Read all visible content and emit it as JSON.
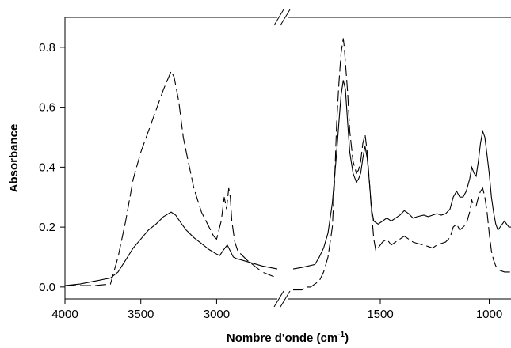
{
  "chart_data": {
    "type": "line",
    "title": "",
    "xlabel": "Nombre d'onde (cm",
    "xlabel_sup": "-1",
    "xlabel_suffix": ")",
    "ylabel": "Absorbance",
    "x_reversed": true,
    "axis_break": true,
    "x_segments": [
      {
        "xlim": [
          4000,
          2600
        ],
        "ticks": [
          4000,
          3500,
          3000
        ],
        "tick_labels": [
          "4000",
          "3500",
          "3000"
        ]
      },
      {
        "xlim": [
          1900,
          900
        ],
        "ticks": [
          1500,
          1000
        ],
        "tick_labels": [
          "1500",
          "1000"
        ]
      }
    ],
    "ylim": [
      -0.04,
      0.9
    ],
    "y_ticks": [
      0.0,
      0.2,
      0.4,
      0.6,
      0.8
    ],
    "y_tick_labels": [
      "0.0",
      "0.2",
      "0.4",
      "0.6",
      "0.8"
    ],
    "grid": false,
    "legend": "none",
    "series": [
      {
        "style": "solid",
        "points": [
          [
            4000,
            0.005
          ],
          [
            3900,
            0.01
          ],
          [
            3800,
            0.02
          ],
          [
            3700,
            0.03
          ],
          [
            3650,
            0.05
          ],
          [
            3600,
            0.09
          ],
          [
            3550,
            0.13
          ],
          [
            3500,
            0.16
          ],
          [
            3450,
            0.19
          ],
          [
            3400,
            0.21
          ],
          [
            3350,
            0.235
          ],
          [
            3300,
            0.25
          ],
          [
            3270,
            0.24
          ],
          [
            3230,
            0.21
          ],
          [
            3200,
            0.19
          ],
          [
            3150,
            0.165
          ],
          [
            3100,
            0.145
          ],
          [
            3050,
            0.125
          ],
          [
            3000,
            0.11
          ],
          [
            2980,
            0.105
          ],
          [
            2960,
            0.12
          ],
          [
            2930,
            0.14
          ],
          [
            2910,
            0.12
          ],
          [
            2890,
            0.1
          ],
          [
            2870,
            0.095
          ],
          [
            2800,
            0.085
          ],
          [
            2700,
            0.07
          ],
          [
            2600,
            0.06
          ],
          null,
          [
            1900,
            0.06
          ],
          [
            1860,
            0.065
          ],
          [
            1830,
            0.07
          ],
          [
            1800,
            0.075
          ],
          [
            1780,
            0.1
          ],
          [
            1760,
            0.13
          ],
          [
            1740,
            0.18
          ],
          [
            1720,
            0.28
          ],
          [
            1700,
            0.45
          ],
          [
            1690,
            0.55
          ],
          [
            1680,
            0.64
          ],
          [
            1670,
            0.69
          ],
          [
            1660,
            0.66
          ],
          [
            1650,
            0.55
          ],
          [
            1640,
            0.45
          ],
          [
            1625,
            0.38
          ],
          [
            1610,
            0.35
          ],
          [
            1600,
            0.36
          ],
          [
            1590,
            0.38
          ],
          [
            1580,
            0.43
          ],
          [
            1570,
            0.47
          ],
          [
            1560,
            0.43
          ],
          [
            1550,
            0.35
          ],
          [
            1540,
            0.26
          ],
          [
            1530,
            0.22
          ],
          [
            1510,
            0.21
          ],
          [
            1490,
            0.22
          ],
          [
            1470,
            0.23
          ],
          [
            1450,
            0.22
          ],
          [
            1430,
            0.23
          ],
          [
            1410,
            0.24
          ],
          [
            1390,
            0.255
          ],
          [
            1370,
            0.245
          ],
          [
            1350,
            0.23
          ],
          [
            1330,
            0.235
          ],
          [
            1300,
            0.24
          ],
          [
            1280,
            0.235
          ],
          [
            1260,
            0.24
          ],
          [
            1240,
            0.245
          ],
          [
            1220,
            0.24
          ],
          [
            1200,
            0.245
          ],
          [
            1180,
            0.26
          ],
          [
            1165,
            0.3
          ],
          [
            1150,
            0.32
          ],
          [
            1135,
            0.3
          ],
          [
            1120,
            0.3
          ],
          [
            1105,
            0.32
          ],
          [
            1090,
            0.36
          ],
          [
            1080,
            0.4
          ],
          [
            1070,
            0.38
          ],
          [
            1060,
            0.37
          ],
          [
            1050,
            0.42
          ],
          [
            1040,
            0.48
          ],
          [
            1030,
            0.52
          ],
          [
            1020,
            0.5
          ],
          [
            1010,
            0.44
          ],
          [
            1000,
            0.38
          ],
          [
            990,
            0.3
          ],
          [
            980,
            0.25
          ],
          [
            970,
            0.21
          ],
          [
            960,
            0.19
          ],
          [
            950,
            0.2
          ],
          [
            940,
            0.21
          ],
          [
            930,
            0.22
          ],
          [
            920,
            0.21
          ],
          [
            910,
            0.2
          ],
          [
            900,
            0.2
          ]
        ]
      },
      {
        "style": "dashed",
        "points": [
          [
            4000,
            0.005
          ],
          [
            3900,
            0.005
          ],
          [
            3800,
            0.005
          ],
          [
            3700,
            0.01
          ],
          [
            3650,
            0.1
          ],
          [
            3600,
            0.22
          ],
          [
            3550,
            0.36
          ],
          [
            3500,
            0.45
          ],
          [
            3450,
            0.52
          ],
          [
            3400,
            0.59
          ],
          [
            3350,
            0.66
          ],
          [
            3300,
            0.72
          ],
          [
            3280,
            0.7
          ],
          [
            3250,
            0.62
          ],
          [
            3220,
            0.5
          ],
          [
            3200,
            0.45
          ],
          [
            3150,
            0.33
          ],
          [
            3100,
            0.25
          ],
          [
            3050,
            0.2
          ],
          [
            3020,
            0.17
          ],
          [
            3000,
            0.16
          ],
          [
            2970,
            0.22
          ],
          [
            2950,
            0.3
          ],
          [
            2935,
            0.26
          ],
          [
            2920,
            0.33
          ],
          [
            2910,
            0.3
          ],
          [
            2900,
            0.22
          ],
          [
            2880,
            0.15
          ],
          [
            2860,
            0.12
          ],
          [
            2800,
            0.09
          ],
          [
            2700,
            0.05
          ],
          [
            2600,
            0.03
          ],
          null,
          [
            1900,
            -0.01
          ],
          [
            1860,
            -0.01
          ],
          [
            1840,
            0.0
          ],
          [
            1820,
            0.0
          ],
          [
            1800,
            0.01
          ],
          [
            1780,
            0.02
          ],
          [
            1760,
            0.05
          ],
          [
            1740,
            0.1
          ],
          [
            1720,
            0.2
          ],
          [
            1710,
            0.35
          ],
          [
            1700,
            0.55
          ],
          [
            1690,
            0.68
          ],
          [
            1680,
            0.78
          ],
          [
            1670,
            0.83
          ],
          [
            1665,
            0.8
          ],
          [
            1660,
            0.75
          ],
          [
            1650,
            0.65
          ],
          [
            1640,
            0.52
          ],
          [
            1625,
            0.42
          ],
          [
            1610,
            0.38
          ],
          [
            1600,
            0.39
          ],
          [
            1590,
            0.42
          ],
          [
            1580,
            0.48
          ],
          [
            1570,
            0.51
          ],
          [
            1560,
            0.45
          ],
          [
            1550,
            0.35
          ],
          [
            1540,
            0.25
          ],
          [
            1530,
            0.16
          ],
          [
            1520,
            0.12
          ],
          [
            1510,
            0.13
          ],
          [
            1490,
            0.15
          ],
          [
            1470,
            0.16
          ],
          [
            1450,
            0.14
          ],
          [
            1430,
            0.15
          ],
          [
            1410,
            0.16
          ],
          [
            1390,
            0.17
          ],
          [
            1370,
            0.16
          ],
          [
            1350,
            0.15
          ],
          [
            1330,
            0.145
          ],
          [
            1300,
            0.14
          ],
          [
            1280,
            0.135
          ],
          [
            1260,
            0.13
          ],
          [
            1240,
            0.14
          ],
          [
            1220,
            0.145
          ],
          [
            1200,
            0.15
          ],
          [
            1180,
            0.165
          ],
          [
            1165,
            0.2
          ],
          [
            1150,
            0.21
          ],
          [
            1135,
            0.19
          ],
          [
            1120,
            0.2
          ],
          [
            1105,
            0.21
          ],
          [
            1090,
            0.25
          ],
          [
            1080,
            0.29
          ],
          [
            1070,
            0.27
          ],
          [
            1060,
            0.27
          ],
          [
            1050,
            0.3
          ],
          [
            1040,
            0.32
          ],
          [
            1030,
            0.33
          ],
          [
            1020,
            0.3
          ],
          [
            1010,
            0.25
          ],
          [
            1000,
            0.18
          ],
          [
            990,
            0.12
          ],
          [
            980,
            0.09
          ],
          [
            970,
            0.07
          ],
          [
            960,
            0.06
          ],
          [
            950,
            0.055
          ],
          [
            930,
            0.05
          ],
          [
            900,
            0.05
          ]
        ]
      }
    ]
  }
}
